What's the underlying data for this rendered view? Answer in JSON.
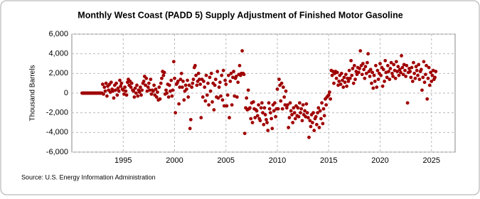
{
  "chart_data": {
    "type": "scatter",
    "title": "Monthly West Coast (PADD 5) Supply Adjustment of Finished Motor Gasoline",
    "y_label": "Thousand Barrels",
    "source": "Source: U.S. Energy Information Administration",
    "color": "#a00000",
    "grid": true,
    "xlim": [
      1990,
      2027.3
    ],
    "xticks": [
      1995,
      2000,
      2005,
      2010,
      2015,
      2020,
      2025
    ],
    "ylim": [
      -6000,
      6000
    ],
    "yticks": [
      {
        "value": -6000,
        "label": "-6,000"
      },
      {
        "value": -4000,
        "label": "-4,000"
      },
      {
        "value": -2000,
        "label": "-2,000"
      },
      0,
      {
        "value": 2000,
        "label": "2,000"
      },
      {
        "value": 4000,
        "label": "4,000"
      },
      {
        "value": 6000,
        "label": "6,000"
      }
    ],
    "x": [
      1991,
      1991.08,
      1991.17,
      1991.25,
      1991.33,
      1991.42,
      1991.5,
      1991.58,
      1991.67,
      1991.75,
      1991.83,
      1991.92,
      1992,
      1992.08,
      1992.17,
      1992.25,
      1992.33,
      1992.42,
      1992.5,
      1992.58,
      1992.67,
      1992.75,
      1992.83,
      1992.92,
      1993,
      1993.08,
      1993.17,
      1993.25,
      1993.33,
      1993.42,
      1993.5,
      1993.58,
      1993.67,
      1993.75,
      1993.83,
      1993.92,
      1994,
      1994.08,
      1994.17,
      1994.25,
      1994.33,
      1994.42,
      1994.5,
      1994.58,
      1994.67,
      1994.75,
      1994.83,
      1994.92,
      1995,
      1995.08,
      1995.17,
      1995.25,
      1995.33,
      1995.42,
      1995.5,
      1995.58,
      1995.67,
      1995.75,
      1995.83,
      1995.92,
      1996,
      1996.08,
      1996.17,
      1996.25,
      1996.33,
      1996.42,
      1996.5,
      1996.58,
      1996.67,
      1996.75,
      1996.83,
      1996.92,
      1997,
      1997.08,
      1997.17,
      1997.25,
      1997.33,
      1997.42,
      1997.5,
      1997.58,
      1997.67,
      1997.75,
      1997.83,
      1997.92,
      1998,
      1998.08,
      1998.17,
      1998.25,
      1998.33,
      1998.42,
      1998.5,
      1998.58,
      1998.67,
      1998.75,
      1998.83,
      1998.92,
      1999,
      1999.08,
      1999.17,
      1999.25,
      1999.33,
      1999.42,
      1999.5,
      1999.58,
      1999.67,
      1999.75,
      1999.83,
      1999.92,
      2000,
      2000.08,
      2000.17,
      2000.25,
      2000.33,
      2000.42,
      2000.5,
      2000.58,
      2000.67,
      2000.75,
      2000.83,
      2000.92,
      2001,
      2001.08,
      2001.17,
      2001.25,
      2001.33,
      2001.42,
      2001.5,
      2001.58,
      2001.67,
      2001.75,
      2001.83,
      2001.92,
      2002,
      2002.08,
      2002.17,
      2002.25,
      2002.33,
      2002.42,
      2002.5,
      2002.58,
      2002.67,
      2002.75,
      2002.83,
      2002.92,
      2003,
      2003.08,
      2003.17,
      2003.25,
      2003.33,
      2003.42,
      2003.5,
      2003.58,
      2003.67,
      2003.75,
      2003.83,
      2003.92,
      2004,
      2004.08,
      2004.17,
      2004.25,
      2004.33,
      2004.42,
      2004.5,
      2004.58,
      2004.67,
      2004.75,
      2004.83,
      2004.92,
      2005,
      2005.08,
      2005.17,
      2005.25,
      2005.33,
      2005.42,
      2005.5,
      2005.58,
      2005.67,
      2005.75,
      2005.83,
      2005.92,
      2006,
      2006.08,
      2006.17,
      2006.25,
      2006.33,
      2006.42,
      2006.5,
      2006.58,
      2006.67,
      2006.75,
      2006.83,
      2006.92,
      2007,
      2007.08,
      2007.17,
      2007.25,
      2007.33,
      2007.42,
      2007.5,
      2007.58,
      2007.67,
      2007.75,
      2007.83,
      2007.92,
      2008,
      2008.08,
      2008.17,
      2008.25,
      2008.33,
      2008.42,
      2008.5,
      2008.58,
      2008.67,
      2008.75,
      2008.83,
      2008.92,
      2009,
      2009.08,
      2009.17,
      2009.25,
      2009.33,
      2009.42,
      2009.5,
      2009.58,
      2009.67,
      2009.75,
      2009.83,
      2009.92,
      2010,
      2010.08,
      2010.17,
      2010.25,
      2010.33,
      2010.42,
      2010.5,
      2010.58,
      2010.67,
      2010.75,
      2010.83,
      2010.92,
      2011,
      2011.08,
      2011.17,
      2011.25,
      2011.33,
      2011.42,
      2011.5,
      2011.58,
      2011.67,
      2011.75,
      2011.83,
      2011.92,
      2012,
      2012.08,
      2012.17,
      2012.25,
      2012.33,
      2012.42,
      2012.5,
      2012.58,
      2012.67,
      2012.75,
      2012.83,
      2012.92,
      2013,
      2013.08,
      2013.17,
      2013.25,
      2013.33,
      2013.42,
      2013.5,
      2013.58,
      2013.67,
      2013.75,
      2013.83,
      2013.92,
      2014,
      2014.08,
      2014.17,
      2014.25,
      2014.33,
      2014.42,
      2014.5,
      2014.58,
      2014.67,
      2014.75,
      2014.83,
      2014.92,
      2015,
      2015.08,
      2015.17,
      2015.25,
      2015.33,
      2015.42,
      2015.5,
      2015.58,
      2015.67,
      2015.75,
      2015.83,
      2015.92,
      2016,
      2016.08,
      2016.17,
      2016.25,
      2016.33,
      2016.42,
      2016.5,
      2016.58,
      2016.67,
      2016.75,
      2016.83,
      2016.92,
      2017,
      2017.08,
      2017.17,
      2017.25,
      2017.33,
      2017.42,
      2017.5,
      2017.58,
      2017.67,
      2017.75,
      2017.83,
      2017.92,
      2018,
      2018.08,
      2018.17,
      2018.25,
      2018.33,
      2018.42,
      2018.5,
      2018.58,
      2018.67,
      2018.75,
      2018.83,
      2018.92,
      2019,
      2019.08,
      2019.17,
      2019.25,
      2019.33,
      2019.42,
      2019.5,
      2019.58,
      2019.67,
      2019.75,
      2019.83,
      2019.92,
      2020,
      2020.08,
      2020.17,
      2020.25,
      2020.33,
      2020.42,
      2020.5,
      2020.58,
      2020.67,
      2020.75,
      2020.83,
      2020.92,
      2021,
      2021.08,
      2021.17,
      2021.25,
      2021.33,
      2021.42,
      2021.5,
      2021.58,
      2021.67,
      2021.75,
      2021.83,
      2021.92,
      2022,
      2022.08,
      2022.17,
      2022.25,
      2022.33,
      2022.42,
      2022.5,
      2022.58,
      2022.67,
      2022.75,
      2022.83,
      2022.92,
      2023,
      2023.08,
      2023.17,
      2023.25,
      2023.33,
      2023.42,
      2023.5,
      2023.58,
      2023.67,
      2023.75,
      2023.83,
      2023.92,
      2024,
      2024.08,
      2024.17,
      2024.25,
      2024.33,
      2024.42,
      2024.5,
      2024.58,
      2024.67,
      2024.75,
      2024.83,
      2024.92,
      2025,
      2025.08,
      2025.17,
      2025.25,
      2025.33,
      2025.42
    ],
    "values": [
      0,
      0,
      0,
      0,
      0,
      0,
      0,
      0,
      0,
      0,
      0,
      0,
      0,
      0,
      0,
      0,
      0,
      0,
      0,
      0,
      0,
      0,
      0,
      0,
      900,
      -100,
      600,
      200,
      1000,
      -300,
      700,
      300,
      900,
      100,
      1100,
      400,
      200,
      -500,
      800,
      300,
      1000,
      -200,
      500,
      200,
      1300,
      700,
      1000,
      400,
      300,
      -100,
      600,
      200,
      -200,
      1100,
      1400,
      800,
      1200,
      600,
      1000,
      300,
      200,
      -400,
      500,
      0,
      800,
      -300,
      300,
      100,
      600,
      -200,
      300,
      1000,
      1200,
      1700,
      800,
      1500,
      200,
      600,
      1000,
      300,
      1400,
      -100,
      300,
      200,
      800,
      -200,
      400,
      -400,
      100,
      -700,
      600,
      -600,
      1000,
      1500,
      2200,
      1800,
      2100,
      -100,
      300,
      0,
      900,
      -400,
      800,
      200,
      1300,
      -300,
      300,
      3200,
      1500,
      -2000,
      900,
      1000,
      1200,
      -1100,
      600,
      1400,
      2000,
      600,
      1200,
      -700,
      200,
      800,
      400,
      1300,
      -400,
      800,
      -3600,
      -2700,
      600,
      1000,
      1400,
      2600,
      2800,
      1800,
      800,
      1200,
      2000,
      1400,
      900,
      -2500,
      1400,
      -400,
      1200,
      600,
      -800,
      1800,
      -200,
      1000,
      -1200,
      1600,
      200,
      2000,
      -900,
      1000,
      -1700,
      800,
      1400,
      -400,
      2200,
      -500,
      600,
      1100,
      -300,
      1800,
      -700,
      2300,
      -1300,
      1300,
      900,
      -1300,
      -200,
      1800,
      -2500,
      1200,
      2000,
      -1200,
      1600,
      2200,
      -300,
      1500,
      1700,
      -400,
      1100,
      1900,
      2800,
      1800,
      2000,
      4300,
      2000,
      1900,
      -4100,
      -1500,
      -500,
      -1700,
      300,
      -1600,
      -1500,
      -2600,
      -1000,
      -3000,
      -900,
      -1600,
      -2500,
      -1700,
      -1800,
      -2300,
      -1200,
      -2600,
      -2800,
      -1500,
      -1000,
      -2000,
      -3200,
      -1500,
      -2200,
      -2700,
      -3000,
      -3800,
      -1000,
      -1600,
      -2000,
      -2600,
      -3600,
      -1200,
      -1800,
      -1000,
      -2400,
      -1600,
      400,
      -1600,
      1400,
      800,
      -800,
      1000,
      -1600,
      600,
      -400,
      -1200,
      200,
      -1500,
      -1200,
      -3500,
      -2500,
      -1000,
      -1800,
      -2200,
      -3000,
      -1500,
      -2000,
      -2600,
      -1300,
      -2300,
      -1500,
      -2400,
      -1000,
      -2000,
      -1600,
      -2800,
      -1200,
      -2200,
      -1800,
      -2400,
      -1100,
      -2000,
      -2500,
      -4500,
      -2800,
      -3400,
      -2200,
      -3000,
      -2000,
      -3800,
      -2600,
      -2400,
      -3200,
      -2000,
      -1500,
      -3500,
      -1800,
      -2600,
      -1000,
      -3100,
      -1600,
      -2300,
      -600,
      -1200,
      -400,
      -300,
      -200,
      100,
      -600,
      2300,
      1800,
      2200,
      1000,
      2000,
      2200,
      1500,
      2100,
      800,
      1200,
      1800,
      900,
      2000,
      1300,
      600,
      1600,
      1100,
      1900,
      700,
      1500,
      1200,
      2300,
      1500,
      3300,
      1800,
      2500,
      1000,
      2800,
      1400,
      2200,
      1900,
      2600,
      2100,
      2500,
      4300,
      2800,
      1900,
      3000,
      2400,
      1500,
      2700,
      2000,
      3100,
      4000,
      2200,
      1700,
      2400,
      1000,
      2100,
      500,
      1800,
      1200,
      2800,
      600,
      2300,
      1400,
      2000,
      3000,
      1800,
      2600,
      700,
      2400,
      1200,
      3300,
      2100,
      1600,
      2800,
      2200,
      1400,
      2500,
      3100,
      2000,
      1700,
      2900,
      2300,
      1500,
      3200,
      2200,
      2700,
      1800,
      2400,
      2100,
      3800,
      2600,
      1900,
      2900,
      2300,
      1700,
      2800,
      -1000,
      2100,
      2500,
      2200,
      1600,
      2600,
      1200,
      3100,
      2000,
      1500,
      2700,
      2300,
      1800,
      2900,
      1400,
      2200,
      2400,
      300,
      1600,
      3200,
      1100,
      1900,
      2800,
      -600,
      1500,
      2600,
      800,
      2100,
      1200,
      1800,
      2300,
      1400,
      1600,
      2200
    ]
  }
}
